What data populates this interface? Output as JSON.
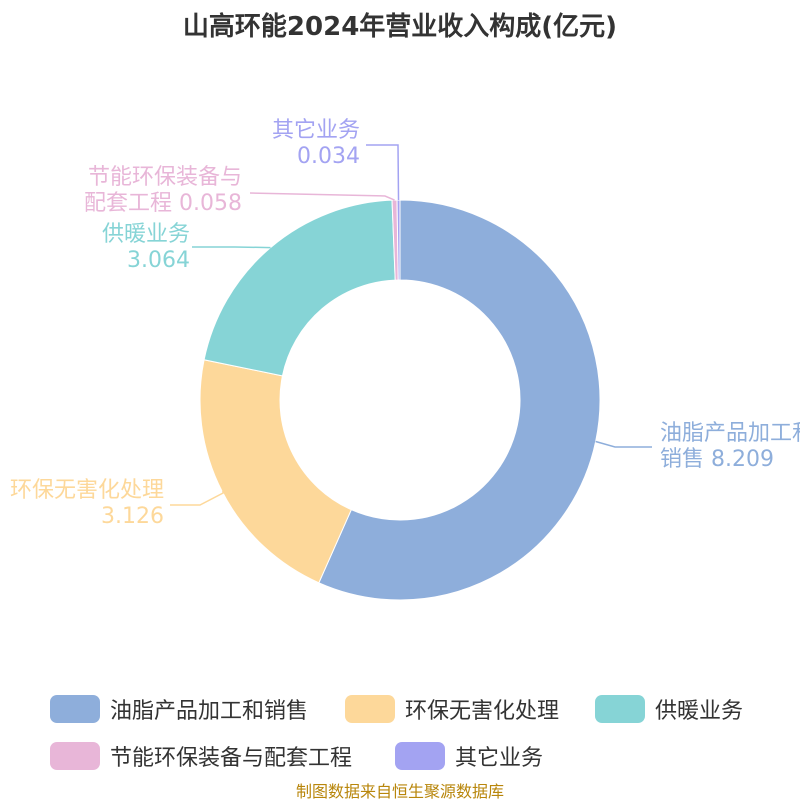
{
  "chart_data": {
    "type": "donut",
    "title": "山高环能2024年营业收入构成(亿元)",
    "categories": [
      "油脂产品加工和销售",
      "环保无害化处理",
      "供暖业务",
      "节能环保装备与配套工程",
      "其它业务"
    ],
    "values": [
      8.209,
      3.126,
      3.064,
      0.058,
      0.034
    ],
    "colors": [
      "#8eaedb",
      "#fdd89a",
      "#86d4d6",
      "#e8b6d8",
      "#a3a3f2"
    ],
    "source": "制图数据来自恒生聚源数据库"
  }
}
